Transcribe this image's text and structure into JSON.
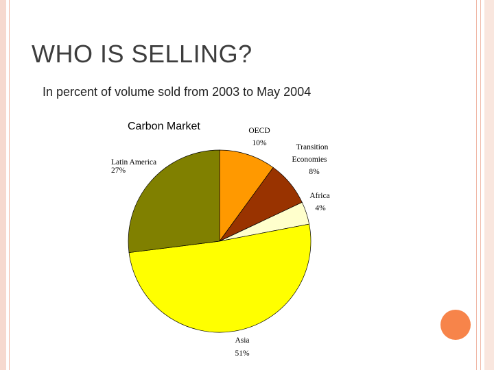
{
  "slide": {
    "title": "WHO IS SELLING?",
    "subtitle": "In percent of volume sold from 2003 to May 2004"
  },
  "colors": {
    "frame": "#f0b8a6",
    "accent_dot": "#f7844a"
  },
  "chart_data": {
    "type": "pie",
    "title": "Carbon Market",
    "slices": [
      {
        "label": "OECD",
        "value_label": "10%",
        "value": 10,
        "color": "#ff9900"
      },
      {
        "label": "Transition Economies",
        "value_label": "8%",
        "value": 8,
        "color": "#993300"
      },
      {
        "label": "Africa",
        "value_label": "4%",
        "value": 4,
        "color": "#ffffcc"
      },
      {
        "label": "Asia",
        "value_label": "51%",
        "value": 51,
        "color": "#ffff00"
      },
      {
        "label": "Latin America",
        "value_label": "27%",
        "value": 27,
        "color": "#808000"
      }
    ]
  }
}
